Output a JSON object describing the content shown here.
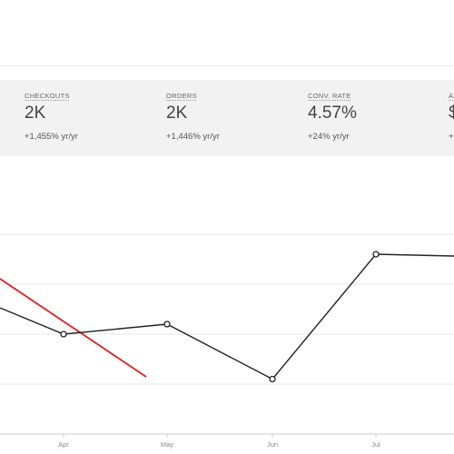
{
  "stats": [
    {
      "label": "CHECKOUTS",
      "value": "2K",
      "change": "+1,455% yr/yr"
    },
    {
      "label": "ORDERS",
      "value": "2K",
      "change": "+1,446% yr/yr"
    },
    {
      "label": "CONV. RATE",
      "value": "4.57%",
      "change": "+24% yr/yr"
    },
    {
      "label": "A",
      "value": "$",
      "change": "+"
    }
  ],
  "chart_data": {
    "type": "line",
    "categories": [
      "Apr",
      "May",
      "Jun",
      "Jul"
    ],
    "series": [
      {
        "values": [
          7.0,
          7.2,
          6.1,
          8.6
        ],
        "color": "#222222"
      }
    ],
    "extra_line": {
      "color": "#e02020"
    },
    "grid": true
  }
}
